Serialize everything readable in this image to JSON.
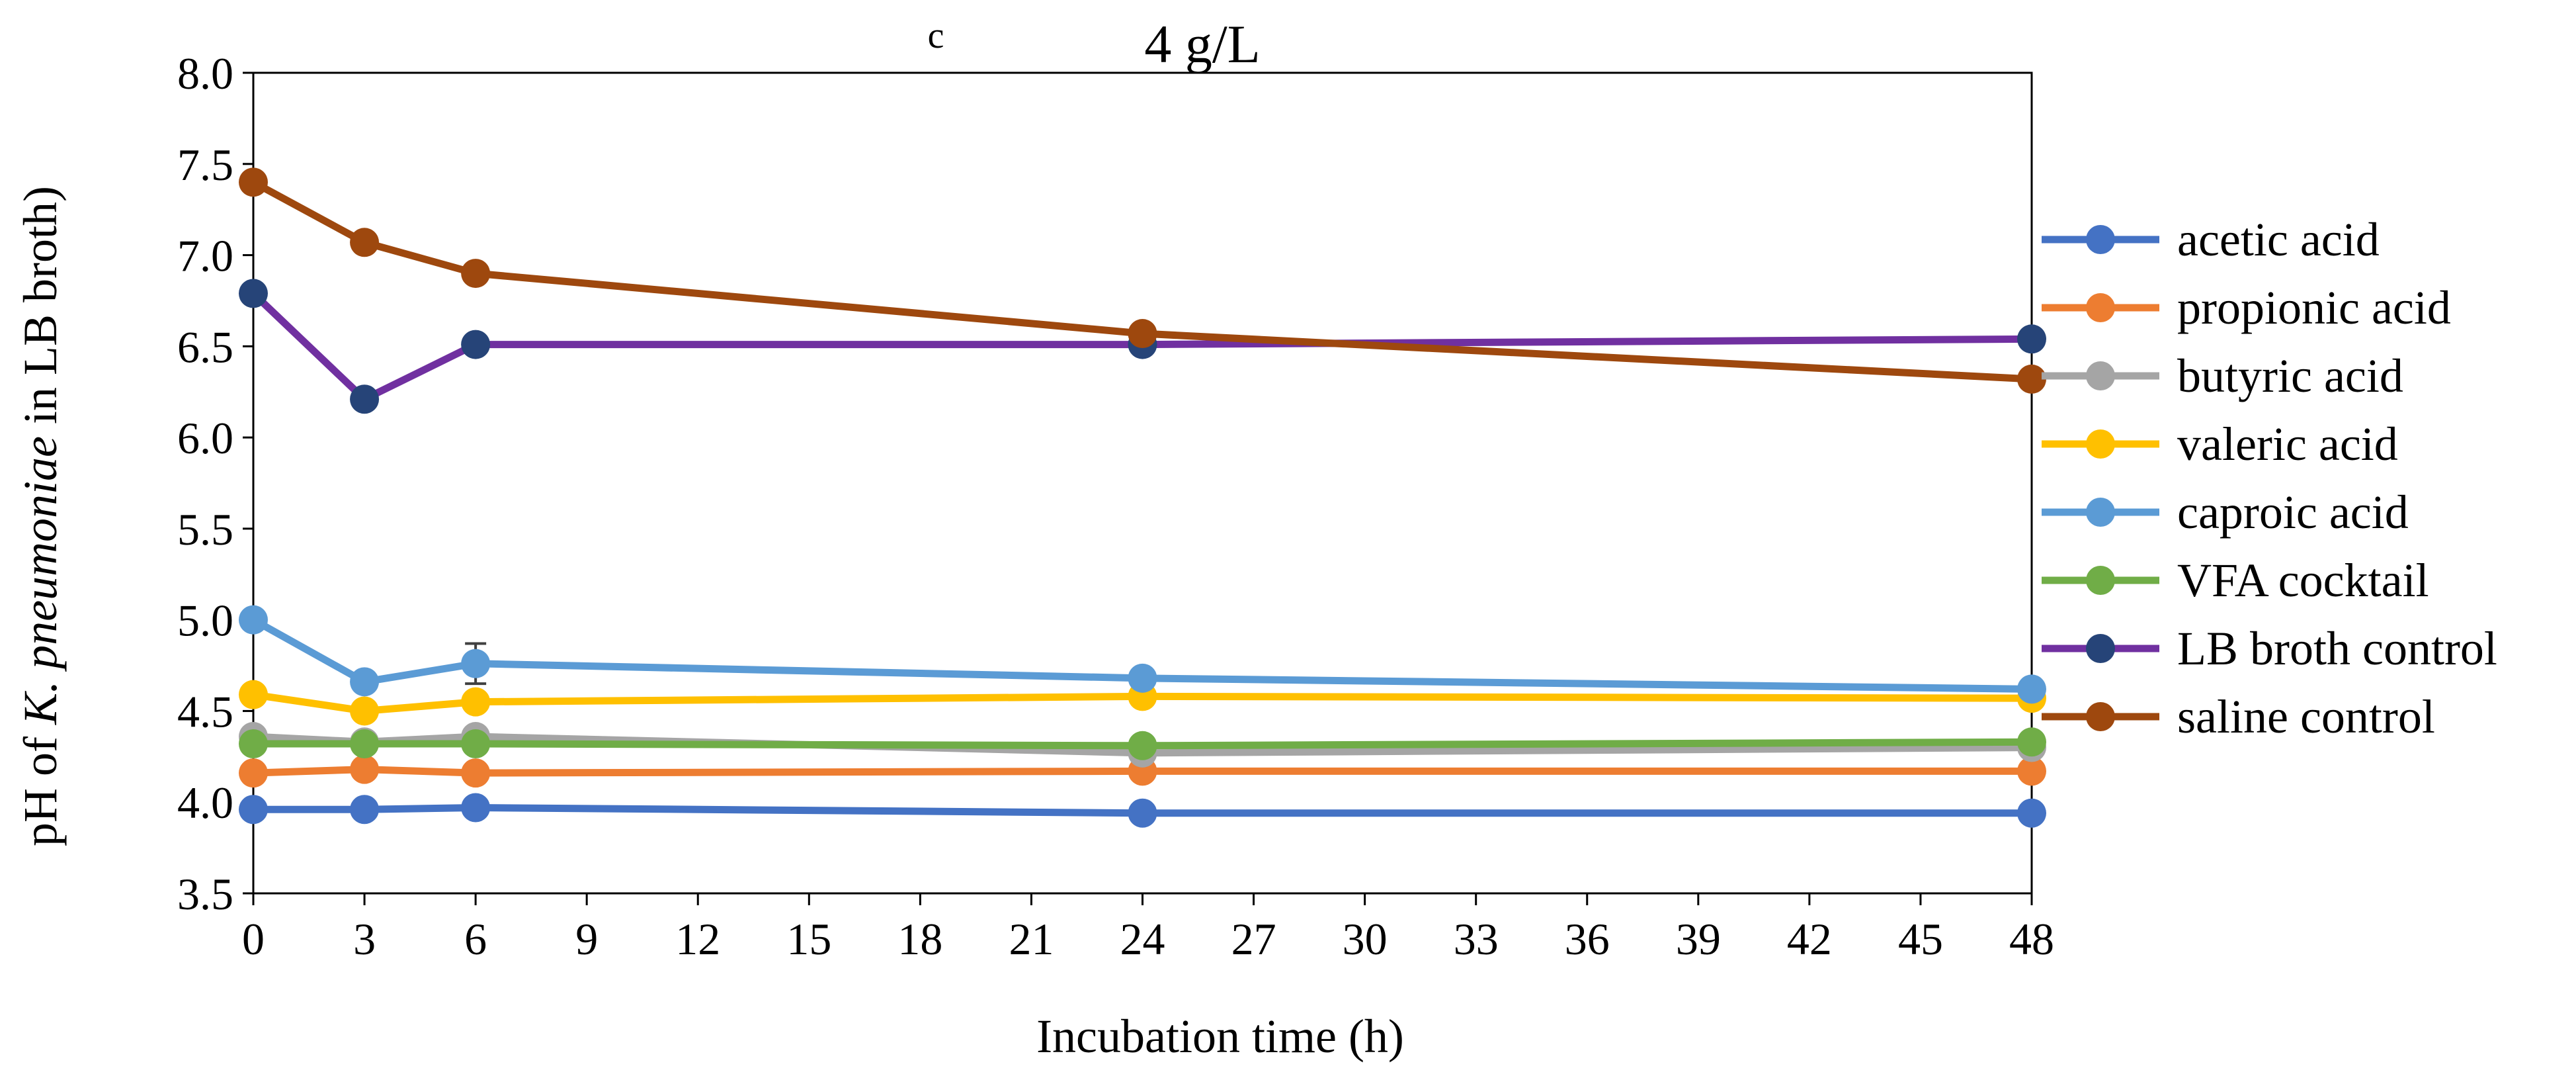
{
  "chart_data": {
    "type": "line",
    "panel_label": "c",
    "title": "4 g/L",
    "xlabel": "Incubation time (h)",
    "ylabel_prefix": "pH of ",
    "ylabel_italic": "K. pneumoniae",
    "ylabel_suffix": " in LB broth)",
    "x": [
      0,
      3,
      6,
      24,
      48
    ],
    "xlim": [
      0,
      48
    ],
    "xticks": [
      0,
      3,
      6,
      9,
      12,
      15,
      18,
      21,
      24,
      27,
      30,
      33,
      36,
      39,
      42,
      45,
      48
    ],
    "ylim": [
      3.5,
      8.0
    ],
    "yticks": [
      "3.5",
      "4.0",
      "4.5",
      "5.0",
      "5.5",
      "6.0",
      "6.5",
      "7.0",
      "7.5",
      "8.0"
    ],
    "legend_position": "right",
    "series": [
      {
        "name": "acetic acid",
        "color": "#4472C4",
        "values": [
          3.96,
          3.96,
          3.97,
          3.94,
          3.94
        ]
      },
      {
        "name": "propionic acid",
        "color": "#ED7D31",
        "values": [
          4.16,
          4.18,
          4.16,
          4.17,
          4.17
        ]
      },
      {
        "name": "butyric acid",
        "color": "#A5A5A5",
        "values": [
          4.36,
          4.33,
          4.36,
          4.27,
          4.3
        ]
      },
      {
        "name": "valeric acid",
        "color": "#FFC000",
        "values": [
          4.59,
          4.5,
          4.55,
          4.58,
          4.57
        ]
      },
      {
        "name": "caproic acid",
        "color": "#5B9BD5",
        "values": [
          5.0,
          4.66,
          4.76,
          4.68,
          4.62
        ],
        "error": [
          0,
          0.02,
          0.11,
          0,
          0
        ]
      },
      {
        "name": "VFA cocktail",
        "color": "#70AD47",
        "values": [
          4.32,
          4.32,
          4.32,
          4.31,
          4.33
        ]
      },
      {
        "name": "LB broth control",
        "color": "#264478",
        "line_color": "#7030A0",
        "values": [
          6.79,
          6.21,
          6.51,
          6.51,
          6.54
        ]
      },
      {
        "name": "saline control",
        "color": "#9E480E",
        "values": [
          7.4,
          7.07,
          6.9,
          6.57,
          6.32
        ],
        "error": [
          0.03,
          0.04,
          0,
          0,
          0
        ]
      }
    ]
  }
}
